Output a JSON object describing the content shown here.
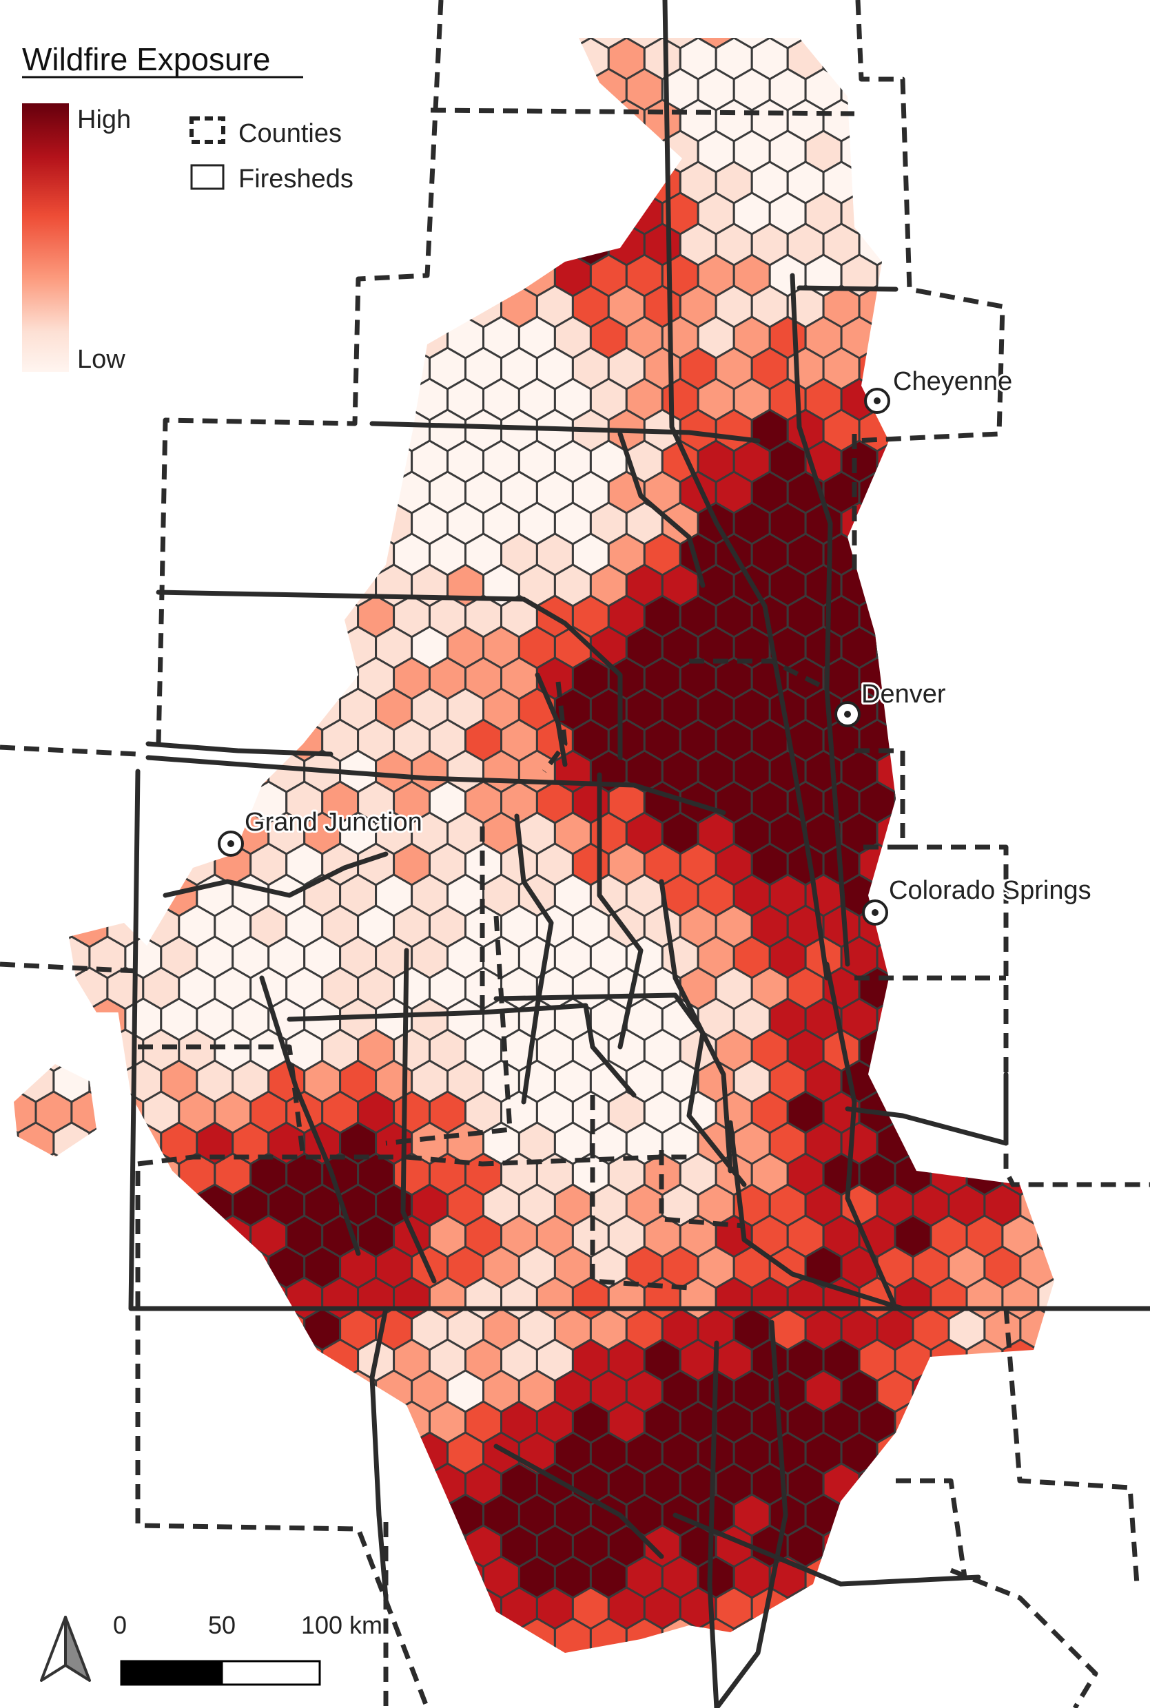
{
  "legend": {
    "title": "Wildfire Exposure",
    "high_label": "High",
    "low_label": "Low",
    "counties_label": "Counties",
    "firesheds_label": "Firesheds",
    "ramp_colors": [
      "#67000d",
      "#c0151c",
      "#ee4d36",
      "#fc9a7d",
      "#fde0d4",
      "#fff5f0"
    ]
  },
  "cities": [
    {
      "name": "Cheyenne"
    },
    {
      "name": "Denver"
    },
    {
      "name": "Grand Junction"
    },
    {
      "name": "Colorado Springs"
    }
  ],
  "scale_bar": {
    "ticks": [
      "0",
      "50",
      "100 km"
    ]
  },
  "icons": {
    "north_arrow": "north-arrow-icon",
    "city_marker": "circle-dot-icon"
  }
}
